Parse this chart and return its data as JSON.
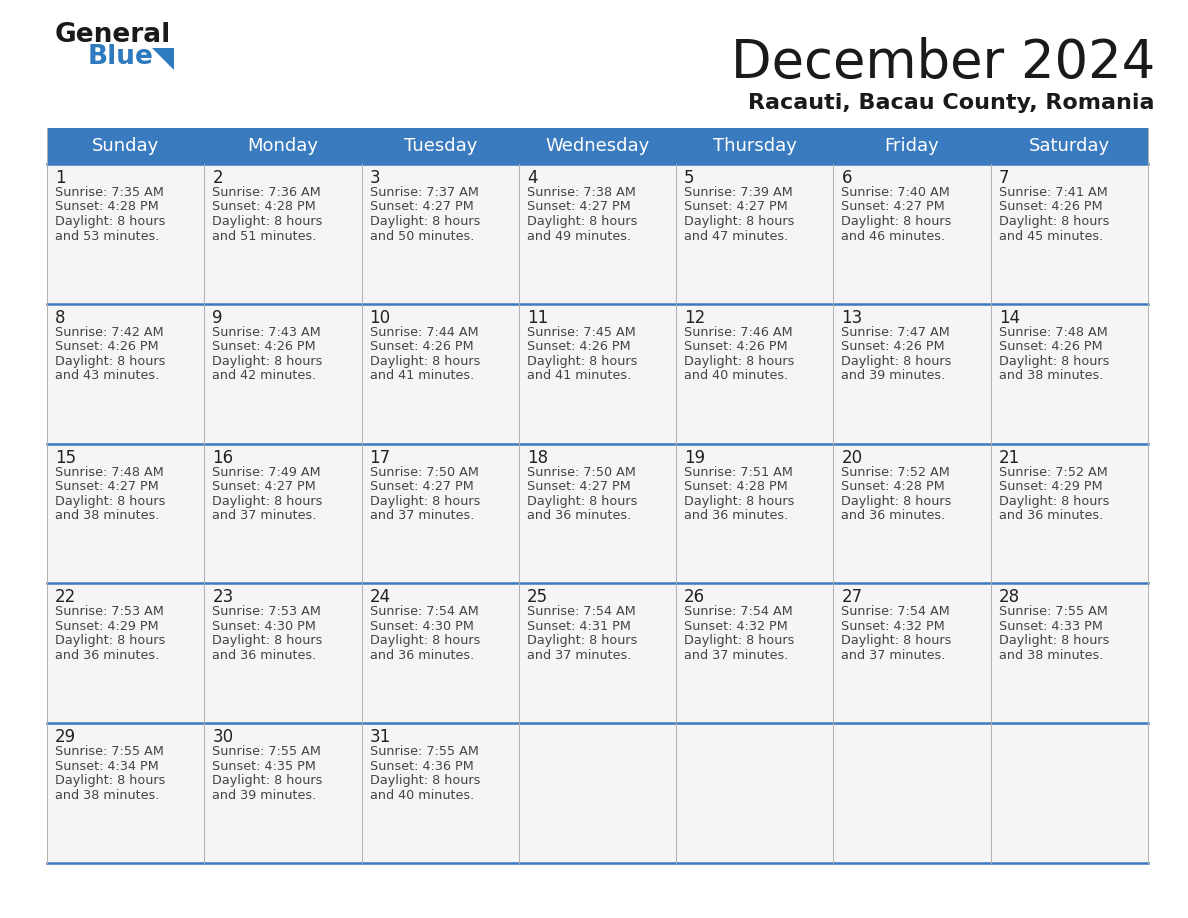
{
  "title": "December 2024",
  "subtitle": "Racauti, Bacau County, Romania",
  "header_bg_color": "#3a7abf",
  "header_text_color": "#ffffff",
  "divider_color": "#3a7abf",
  "cell_bg_color": "#f5f5f5",
  "text_color": "#444444",
  "days_of_week": [
    "Sunday",
    "Monday",
    "Tuesday",
    "Wednesday",
    "Thursday",
    "Friday",
    "Saturday"
  ],
  "weeks": [
    [
      {
        "day": 1,
        "sunrise": "7:35 AM",
        "sunset": "4:28 PM",
        "daylight_hours": 8,
        "daylight_mins": 53
      },
      {
        "day": 2,
        "sunrise": "7:36 AM",
        "sunset": "4:28 PM",
        "daylight_hours": 8,
        "daylight_mins": 51
      },
      {
        "day": 3,
        "sunrise": "7:37 AM",
        "sunset": "4:27 PM",
        "daylight_hours": 8,
        "daylight_mins": 50
      },
      {
        "day": 4,
        "sunrise": "7:38 AM",
        "sunset": "4:27 PM",
        "daylight_hours": 8,
        "daylight_mins": 49
      },
      {
        "day": 5,
        "sunrise": "7:39 AM",
        "sunset": "4:27 PM",
        "daylight_hours": 8,
        "daylight_mins": 47
      },
      {
        "day": 6,
        "sunrise": "7:40 AM",
        "sunset": "4:27 PM",
        "daylight_hours": 8,
        "daylight_mins": 46
      },
      {
        "day": 7,
        "sunrise": "7:41 AM",
        "sunset": "4:26 PM",
        "daylight_hours": 8,
        "daylight_mins": 45
      }
    ],
    [
      {
        "day": 8,
        "sunrise": "7:42 AM",
        "sunset": "4:26 PM",
        "daylight_hours": 8,
        "daylight_mins": 43
      },
      {
        "day": 9,
        "sunrise": "7:43 AM",
        "sunset": "4:26 PM",
        "daylight_hours": 8,
        "daylight_mins": 42
      },
      {
        "day": 10,
        "sunrise": "7:44 AM",
        "sunset": "4:26 PM",
        "daylight_hours": 8,
        "daylight_mins": 41
      },
      {
        "day": 11,
        "sunrise": "7:45 AM",
        "sunset": "4:26 PM",
        "daylight_hours": 8,
        "daylight_mins": 41
      },
      {
        "day": 12,
        "sunrise": "7:46 AM",
        "sunset": "4:26 PM",
        "daylight_hours": 8,
        "daylight_mins": 40
      },
      {
        "day": 13,
        "sunrise": "7:47 AM",
        "sunset": "4:26 PM",
        "daylight_hours": 8,
        "daylight_mins": 39
      },
      {
        "day": 14,
        "sunrise": "7:48 AM",
        "sunset": "4:26 PM",
        "daylight_hours": 8,
        "daylight_mins": 38
      }
    ],
    [
      {
        "day": 15,
        "sunrise": "7:48 AM",
        "sunset": "4:27 PM",
        "daylight_hours": 8,
        "daylight_mins": 38
      },
      {
        "day": 16,
        "sunrise": "7:49 AM",
        "sunset": "4:27 PM",
        "daylight_hours": 8,
        "daylight_mins": 37
      },
      {
        "day": 17,
        "sunrise": "7:50 AM",
        "sunset": "4:27 PM",
        "daylight_hours": 8,
        "daylight_mins": 37
      },
      {
        "day": 18,
        "sunrise": "7:50 AM",
        "sunset": "4:27 PM",
        "daylight_hours": 8,
        "daylight_mins": 36
      },
      {
        "day": 19,
        "sunrise": "7:51 AM",
        "sunset": "4:28 PM",
        "daylight_hours": 8,
        "daylight_mins": 36
      },
      {
        "day": 20,
        "sunrise": "7:52 AM",
        "sunset": "4:28 PM",
        "daylight_hours": 8,
        "daylight_mins": 36
      },
      {
        "day": 21,
        "sunrise": "7:52 AM",
        "sunset": "4:29 PM",
        "daylight_hours": 8,
        "daylight_mins": 36
      }
    ],
    [
      {
        "day": 22,
        "sunrise": "7:53 AM",
        "sunset": "4:29 PM",
        "daylight_hours": 8,
        "daylight_mins": 36
      },
      {
        "day": 23,
        "sunrise": "7:53 AM",
        "sunset": "4:30 PM",
        "daylight_hours": 8,
        "daylight_mins": 36
      },
      {
        "day": 24,
        "sunrise": "7:54 AM",
        "sunset": "4:30 PM",
        "daylight_hours": 8,
        "daylight_mins": 36
      },
      {
        "day": 25,
        "sunrise": "7:54 AM",
        "sunset": "4:31 PM",
        "daylight_hours": 8,
        "daylight_mins": 37
      },
      {
        "day": 26,
        "sunrise": "7:54 AM",
        "sunset": "4:32 PM",
        "daylight_hours": 8,
        "daylight_mins": 37
      },
      {
        "day": 27,
        "sunrise": "7:54 AM",
        "sunset": "4:32 PM",
        "daylight_hours": 8,
        "daylight_mins": 37
      },
      {
        "day": 28,
        "sunrise": "7:55 AM",
        "sunset": "4:33 PM",
        "daylight_hours": 8,
        "daylight_mins": 38
      }
    ],
    [
      {
        "day": 29,
        "sunrise": "7:55 AM",
        "sunset": "4:34 PM",
        "daylight_hours": 8,
        "daylight_mins": 38
      },
      {
        "day": 30,
        "sunrise": "7:55 AM",
        "sunset": "4:35 PM",
        "daylight_hours": 8,
        "daylight_mins": 39
      },
      {
        "day": 31,
        "sunrise": "7:55 AM",
        "sunset": "4:36 PM",
        "daylight_hours": 8,
        "daylight_mins": 40
      },
      null,
      null,
      null,
      null
    ]
  ],
  "logo_color_general": "#1a1a1a",
  "logo_color_blue": "#2e7abf",
  "logo_triangle_color": "#2e7abf"
}
